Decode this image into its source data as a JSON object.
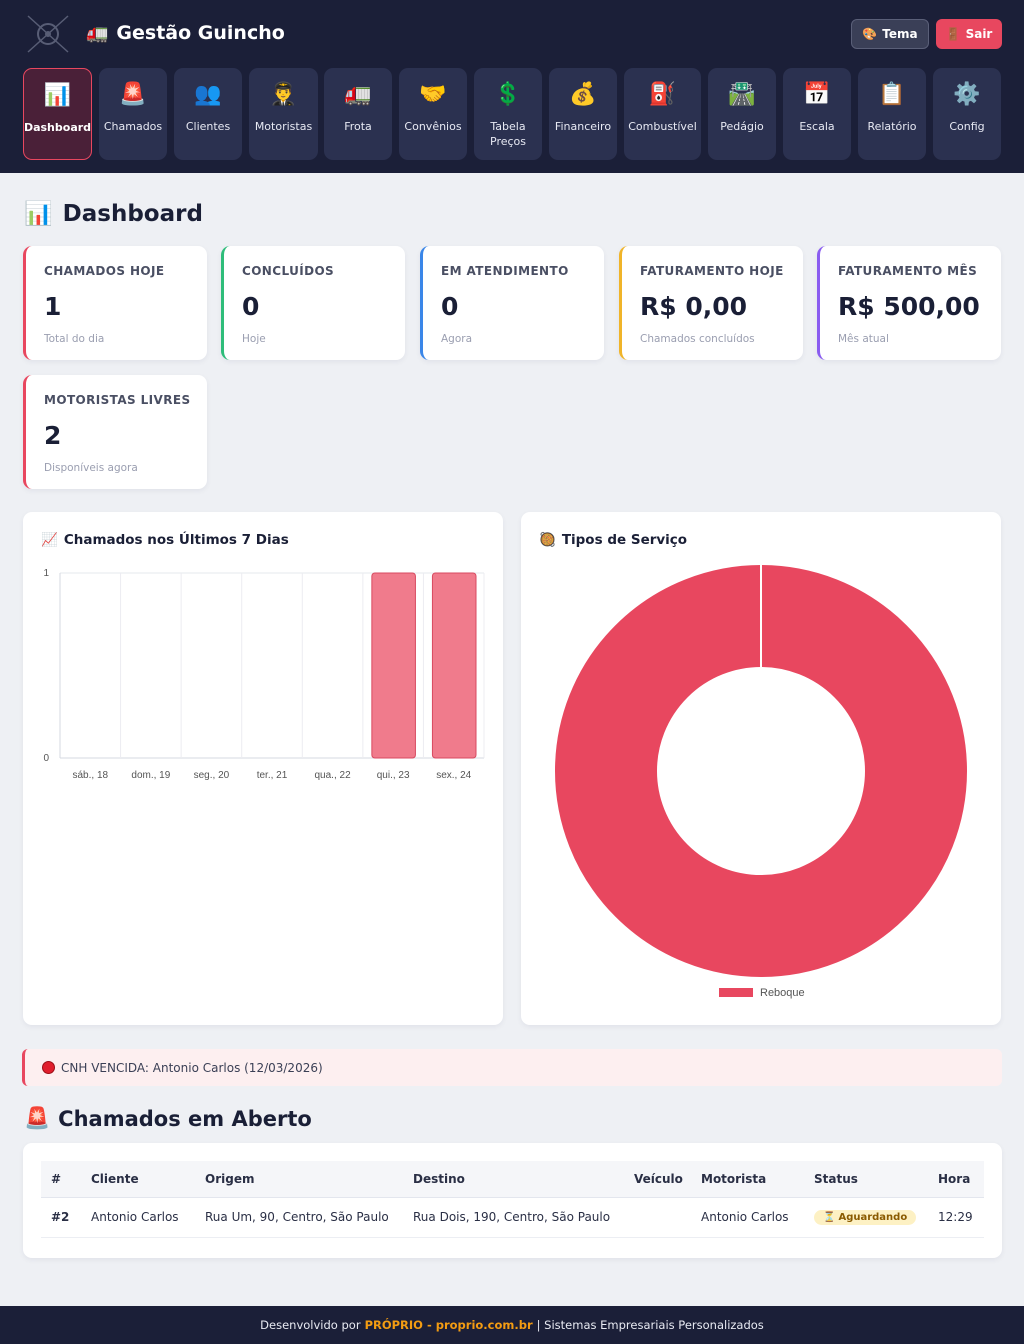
{
  "header": {
    "brand_icon": "🚛",
    "brand": "Gestão Guincho",
    "tema_icon": "🎨",
    "tema_label": "Tema",
    "sair_icon": "🚪",
    "sair_label": "Sair"
  },
  "nav": [
    {
      "icon": "📊",
      "label": "Dashboard",
      "active": true
    },
    {
      "icon": "🚨",
      "label": "Chamados"
    },
    {
      "icon": "👥",
      "label": "Clientes"
    },
    {
      "icon": "👨‍✈️",
      "label": "Motoristas"
    },
    {
      "icon": "🚛",
      "label": "Frota"
    },
    {
      "icon": "🤝",
      "label": "Convênios"
    },
    {
      "icon": "💲",
      "label": "Tabela Preços"
    },
    {
      "icon": "💰",
      "label": "Financeiro"
    },
    {
      "icon": "⛽",
      "label": "Combustível"
    },
    {
      "icon": "🛣️",
      "label": "Pedágio"
    },
    {
      "icon": "📅",
      "label": "Escala"
    },
    {
      "icon": "📋",
      "label": "Relatório"
    },
    {
      "icon": "⚙️",
      "label": "Config"
    }
  ],
  "page": {
    "icon": "📊",
    "title": "Dashboard"
  },
  "stats": [
    {
      "title": "CHAMADOS HOJE",
      "value": "1",
      "sub": "Total do dia",
      "color": "#e8475f"
    },
    {
      "title": "CONCLUÍDOS",
      "value": "0",
      "sub": "Hoje",
      "color": "#2ebd7a"
    },
    {
      "title": "EM ATENDIMENTO",
      "value": "0",
      "sub": "Agora",
      "color": "#3a86e8"
    },
    {
      "title": "FATURAMENTO HOJE",
      "value": "R$ 0,00",
      "sub": "Chamados concluídos",
      "color": "#f0b429"
    },
    {
      "title": "FATURAMENTO MÊS",
      "value": "R$ 500,00",
      "sub": "Mês atual",
      "color": "#8a5cf0"
    },
    {
      "title": "MOTORISTAS LIVRES",
      "value": "2",
      "sub": "Disponíveis agora",
      "color": "#e8475f"
    }
  ],
  "charts": {
    "bar_title_icon": "📈",
    "bar_title": "Chamados nos Últimos 7 Dias",
    "pie_title_icon": "🥘",
    "pie_title": "Tipos de Serviço"
  },
  "chart_data": [
    {
      "type": "bar",
      "title": "Chamados nos Últimos 7 Dias",
      "categories": [
        "sáb., 18",
        "dom., 19",
        "seg., 20",
        "ter., 21",
        "qua., 22",
        "qui., 23",
        "sex., 24"
      ],
      "values": [
        0,
        0,
        0,
        0,
        0,
        1,
        1
      ],
      "ylim": [
        0,
        1
      ],
      "yticks": [
        "0",
        "1"
      ],
      "grid": true,
      "color": "#f07b8c"
    },
    {
      "type": "pie",
      "title": "Tipos de Serviço",
      "labels": [
        "Reboque"
      ],
      "values": [
        1
      ],
      "donut": true,
      "legend": "bottom",
      "color": "#e8475f"
    }
  ],
  "alert": {
    "text": "CNH VENCIDA: Antonio Carlos (12/03/2026)"
  },
  "open_calls": {
    "icon": "🚨",
    "title": "Chamados em Aberto",
    "headers": [
      "#",
      "Cliente",
      "Origem",
      "Destino",
      "Veículo",
      "Motorista",
      "Status",
      "Hora"
    ],
    "rows": [
      {
        "id": "#2",
        "cliente": "Antonio Carlos",
        "origem": "Rua Um, 90, Centro, São Paulo",
        "destino": "Rua Dois, 190, Centro, São Paulo",
        "veiculo": "",
        "motorista": "Antonio Carlos",
        "status_icon": "⏳",
        "status": "Aguardando",
        "hora": "12:29"
      }
    ]
  },
  "footer": {
    "prefix": "Desenvolvido por",
    "brand": "PRÓPRIO - proprio.com.br",
    "suffix": "| Sistemas Empresariais Personalizados"
  }
}
